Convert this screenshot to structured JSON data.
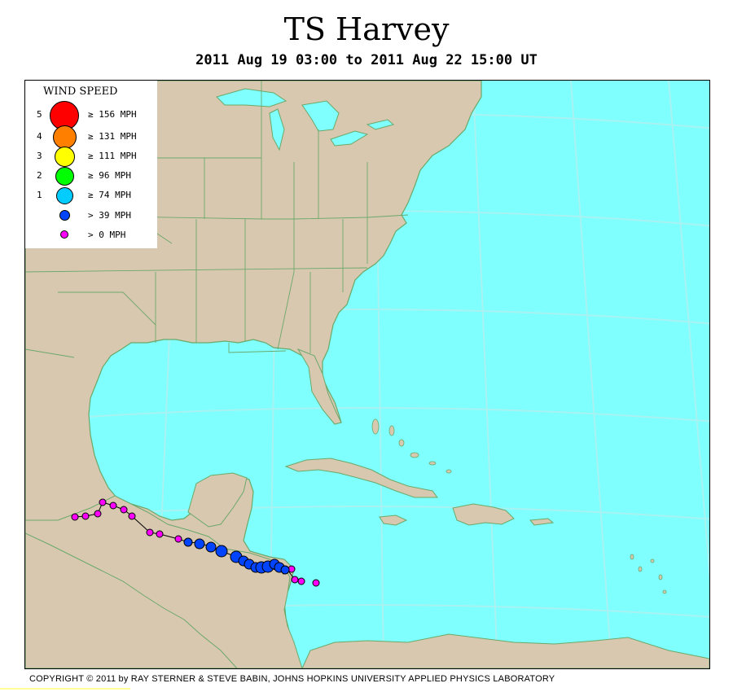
{
  "title": "TS Harvey",
  "subtitle": "2011 Aug 19 03:00 to 2011 Aug 22 15:00 UT",
  "legend": {
    "title": "WIND SPEED",
    "items": [
      {
        "cat": "5",
        "label": "≥ 156 MPH",
        "color": "#ff0000"
      },
      {
        "cat": "4",
        "label": "≥ 131 MPH",
        "color": "#ff8000"
      },
      {
        "cat": "3",
        "label": "≥ 111 MPH",
        "color": "#ffff00"
      },
      {
        "cat": "2",
        "label": "≥ 96 MPH",
        "color": "#00ff00"
      },
      {
        "cat": "1",
        "label": "≥ 74 MPH",
        "color": "#00ccff"
      },
      {
        "cat": "",
        "label": "> 39 MPH",
        "color": "#0044ff"
      },
      {
        "cat": "",
        "label": "> 0 MPH",
        "color": "#ff00ff"
      }
    ]
  },
  "colors": {
    "ocean": "#80ffff",
    "land": "#d9c8b0",
    "border": "#6aa86a",
    "tropical_storm": "#0044ff",
    "depression": "#ff00ff"
  },
  "track": {
    "start": "2011 Aug 19 03:00",
    "end": "2011 Aug 22 15:00",
    "categories_present": [
      "> 39 MPH",
      "> 0 MPH"
    ]
  },
  "copyright": "COPYRIGHT © 2011 by RAY STERNER & STEVE BABIN, JOHNS HOPKINS UNIVERSITY APPLIED PHYSICS LABORATORY"
}
